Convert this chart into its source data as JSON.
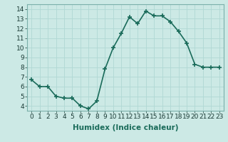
{
  "x": [
    0,
    1,
    2,
    3,
    4,
    5,
    6,
    7,
    8,
    9,
    10,
    11,
    12,
    13,
    14,
    15,
    16,
    17,
    18,
    19,
    20,
    21,
    22,
    23
  ],
  "y": [
    6.7,
    6.0,
    6.0,
    5.0,
    4.8,
    4.8,
    4.0,
    3.7,
    4.5,
    7.8,
    10.0,
    11.5,
    13.2,
    12.5,
    13.8,
    13.3,
    13.3,
    12.7,
    11.7,
    10.5,
    8.3,
    8.0,
    8.0,
    8.0
  ],
  "line_color": "#1a6b5a",
  "marker": "+",
  "marker_size": 4,
  "marker_linewidth": 1.2,
  "bg_color": "#cce9e5",
  "grid_color": "#b0d8d4",
  "xlabel": "Humidex (Indice chaleur)",
  "ylim": [
    3.5,
    14.5
  ],
  "xlim": [
    -0.5,
    23.5
  ],
  "yticks": [
    4,
    5,
    6,
    7,
    8,
    9,
    10,
    11,
    12,
    13,
    14
  ],
  "xticks": [
    0,
    1,
    2,
    3,
    4,
    5,
    6,
    7,
    8,
    9,
    10,
    11,
    12,
    13,
    14,
    15,
    16,
    17,
    18,
    19,
    20,
    21,
    22,
    23
  ],
  "xlabel_fontsize": 7.5,
  "tick_fontsize": 6.5,
  "line_width": 1.2
}
